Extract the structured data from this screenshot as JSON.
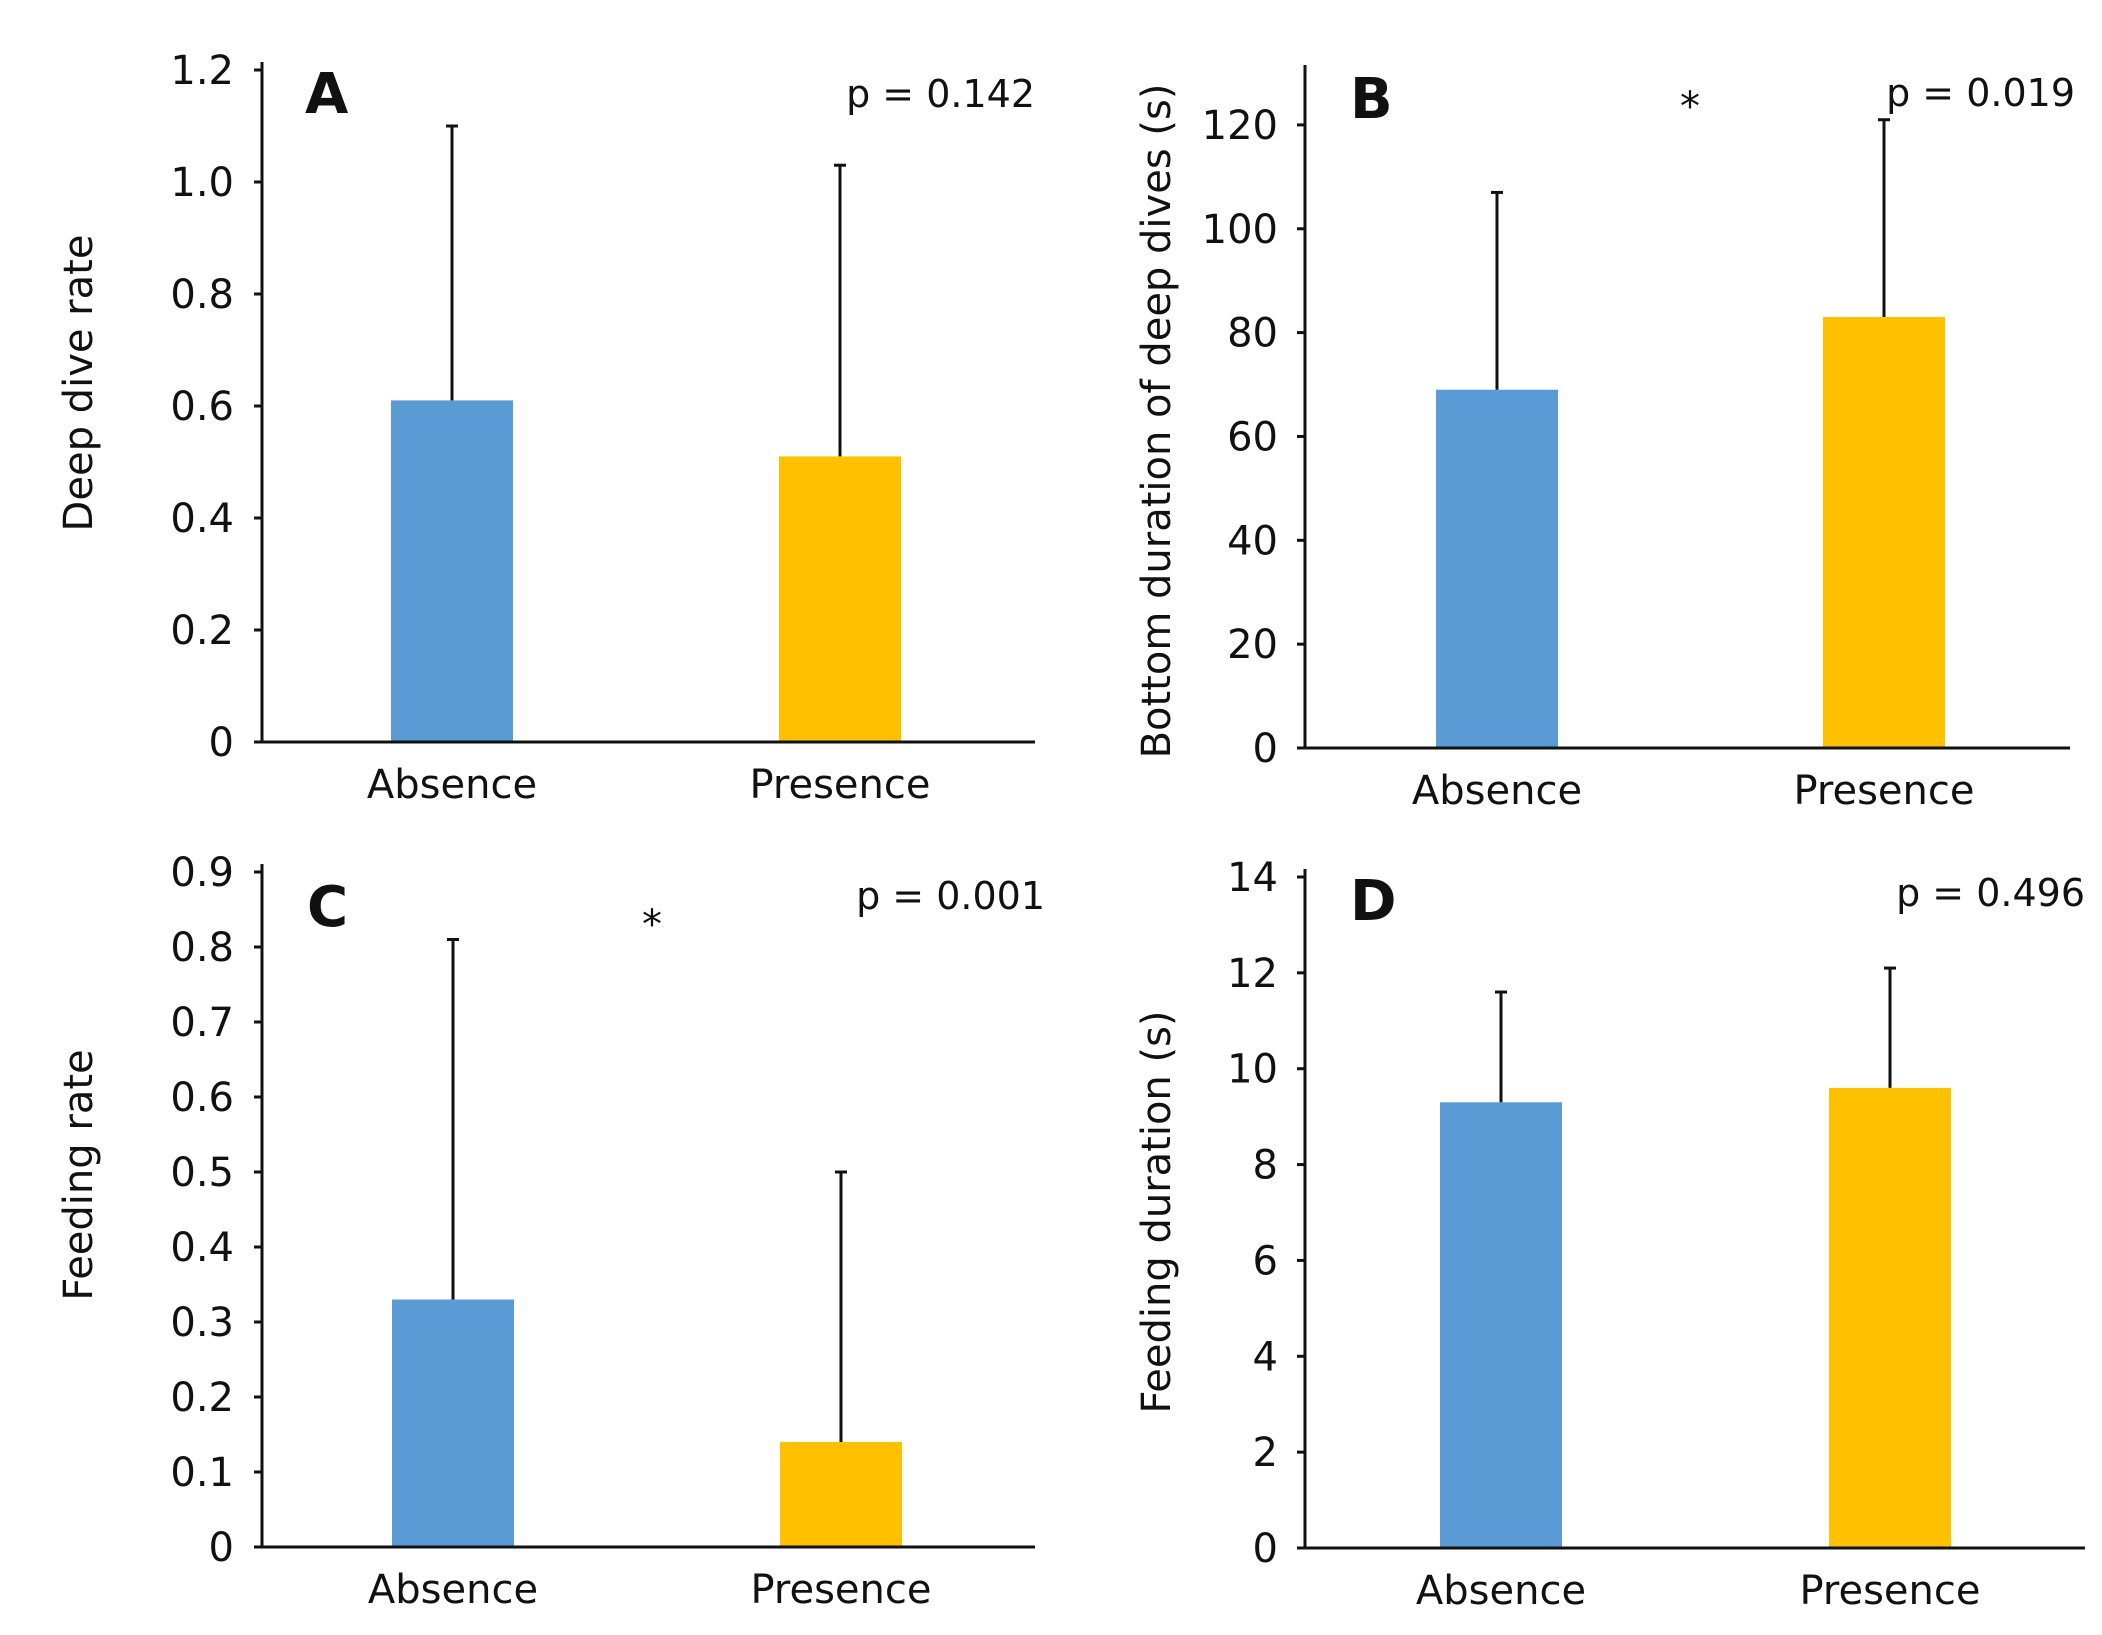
{
  "colors": {
    "absence": "#5b9bd5",
    "presence": "#ffc000",
    "axis": "#111111",
    "error_bar": "#111111"
  },
  "chart_data": [
    {
      "type": "bar",
      "panel": "A",
      "categories": [
        "Absence",
        "Presence"
      ],
      "values": [
        0.61,
        0.51
      ],
      "error_upper": [
        1.1,
        1.03
      ],
      "ylabel": "Deep dive rate",
      "xlabel": "",
      "ylim": [
        0,
        1.2
      ],
      "ticks": [
        0,
        0.2,
        0.4,
        0.6,
        0.8,
        1.0,
        1.2
      ],
      "tick_labels": [
        "0",
        "0.2",
        "0.4",
        "0.6",
        "0.8",
        "1.0",
        "1.2"
      ],
      "p_text": "p = 0.142",
      "significance": ""
    },
    {
      "type": "bar",
      "panel": "B",
      "categories": [
        "Absence",
        "Presence"
      ],
      "values": [
        69,
        83
      ],
      "error_upper": [
        107,
        121
      ],
      "ylabel": "Bottom duration of deep dives (s)",
      "xlabel": "",
      "ylim": [
        0,
        130
      ],
      "ticks": [
        0,
        20,
        40,
        60,
        80,
        100,
        120
      ],
      "tick_labels": [
        "0",
        "20",
        "40",
        "60",
        "80",
        "100",
        "120"
      ],
      "p_text": "p = 0.019",
      "significance": "*"
    },
    {
      "type": "bar",
      "panel": "C",
      "categories": [
        "Absence",
        "Presence"
      ],
      "values": [
        0.33,
        0.14
      ],
      "error_upper": [
        0.81,
        0.5
      ],
      "ylabel": "Feeding rate",
      "xlabel": "",
      "ylim": [
        0,
        0.9
      ],
      "ticks": [
        0,
        0.1,
        0.2,
        0.3,
        0.4,
        0.5,
        0.6,
        0.7,
        0.8,
        0.9
      ],
      "tick_labels": [
        "0",
        "0.1",
        "0.2",
        "0.3",
        "0.4",
        "0.5",
        "0.6",
        "0.7",
        "0.8",
        "0.9"
      ],
      "p_text": "p = 0.001",
      "significance": "*"
    },
    {
      "type": "bar",
      "panel": "D",
      "categories": [
        "Absence",
        "Presence"
      ],
      "values": [
        9.3,
        9.6
      ],
      "error_upper": [
        11.6,
        12.1
      ],
      "ylabel": "Feeding duration (s)",
      "xlabel": "",
      "ylim": [
        0,
        14
      ],
      "ticks": [
        0,
        2,
        4,
        6,
        8,
        10,
        12,
        14
      ],
      "tick_labels": [
        "0",
        "2",
        "4",
        "6",
        "8",
        "10",
        "12",
        "14"
      ],
      "p_text": "p = 0.496",
      "significance": ""
    }
  ]
}
